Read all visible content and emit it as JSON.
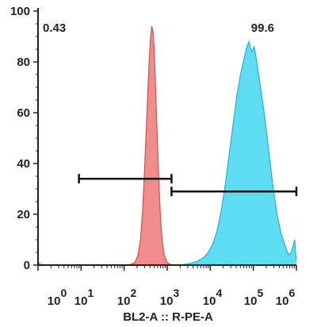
{
  "chart_data": {
    "type": "area",
    "xlabel": "BL2-A :: R-PE-A",
    "ylabel": "",
    "x_scale": "log",
    "x_tick_labels": [
      {
        "base": "10",
        "exp": "0"
      },
      {
        "base": "10",
        "exp": "1"
      },
      {
        "base": "10",
        "exp": "2"
      },
      {
        "base": "10",
        "exp": "3"
      },
      {
        "base": "10",
        "exp": "4"
      },
      {
        "base": "10",
        "exp": "5"
      },
      {
        "base": "10",
        "exp": "6"
      }
    ],
    "ylim": [
      0,
      100
    ],
    "y_ticks": [
      "0",
      "20",
      "40",
      "60",
      "80",
      "100"
    ],
    "gates": [
      {
        "label": "0.43",
        "range": [
          0.95,
          3.1
        ],
        "y": 34
      },
      {
        "label": "99.6",
        "range": [
          3.1,
          6.0
        ],
        "y": 29
      }
    ],
    "series": [
      {
        "color": "#f08080",
        "stroke": "#d05050",
        "points": [
          [
            1.0,
            0
          ],
          [
            2.1,
            0
          ],
          [
            2.25,
            1
          ],
          [
            2.32,
            4
          ],
          [
            2.38,
            10
          ],
          [
            2.43,
            22
          ],
          [
            2.47,
            36
          ],
          [
            2.51,
            52
          ],
          [
            2.55,
            68
          ],
          [
            2.58,
            80
          ],
          [
            2.61,
            89
          ],
          [
            2.64,
            94
          ],
          [
            2.67,
            92
          ],
          [
            2.7,
            84
          ],
          [
            2.73,
            70
          ],
          [
            2.76,
            54
          ],
          [
            2.8,
            36
          ],
          [
            2.84,
            20
          ],
          [
            2.88,
            10
          ],
          [
            2.93,
            4
          ],
          [
            3.0,
            1
          ],
          [
            3.1,
            0
          ]
        ]
      },
      {
        "color": "#4dd8f0",
        "stroke": "#2ab0d0",
        "points": [
          [
            0.0,
            1
          ],
          [
            0.1,
            0
          ],
          [
            3.3,
            0
          ],
          [
            3.5,
            0.5
          ],
          [
            3.7,
            1.5
          ],
          [
            3.85,
            3
          ],
          [
            3.95,
            5
          ],
          [
            4.05,
            8
          ],
          [
            4.15,
            13
          ],
          [
            4.25,
            21
          ],
          [
            4.35,
            32
          ],
          [
            4.45,
            45
          ],
          [
            4.55,
            58
          ],
          [
            4.62,
            67
          ],
          [
            4.7,
            75
          ],
          [
            4.78,
            81
          ],
          [
            4.85,
            86
          ],
          [
            4.9,
            88
          ],
          [
            4.96,
            84
          ],
          [
            5.02,
            86
          ],
          [
            5.08,
            80
          ],
          [
            5.15,
            72
          ],
          [
            5.25,
            60
          ],
          [
            5.35,
            46
          ],
          [
            5.45,
            32
          ],
          [
            5.55,
            20
          ],
          [
            5.65,
            12
          ],
          [
            5.75,
            7
          ],
          [
            5.82,
            4
          ],
          [
            5.88,
            5
          ],
          [
            5.93,
            8
          ],
          [
            5.96,
            10
          ],
          [
            5.98,
            5
          ],
          [
            6.0,
            2
          ]
        ]
      }
    ],
    "grid": false
  }
}
